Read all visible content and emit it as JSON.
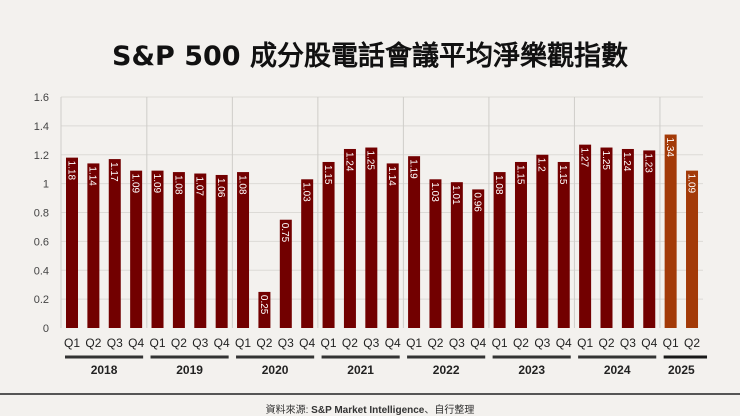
{
  "chart_data": {
    "type": "bar",
    "title": "S&P 500 成分股電話會議平均淨樂觀指數",
    "xlabel": "",
    "ylabel": "",
    "ylim": [
      0,
      1.6
    ],
    "yticks": [
      "0",
      "0.2",
      "0.4",
      "0.6",
      "0.8",
      "1",
      "1.2",
      "1.4",
      "1.6"
    ],
    "grid": true,
    "groups": [
      {
        "year": "2018",
        "quarters": [
          "Q1",
          "Q2",
          "Q3",
          "Q4"
        ],
        "values": [
          1.18,
          1.14,
          1.17,
          1.09
        ]
      },
      {
        "year": "2019",
        "quarters": [
          "Q1",
          "Q2",
          "Q3",
          "Q4"
        ],
        "values": [
          1.09,
          1.08,
          1.07,
          1.06
        ]
      },
      {
        "year": "2020",
        "quarters": [
          "Q1",
          "Q2",
          "Q3",
          "Q4"
        ],
        "values": [
          1.08,
          0.25,
          0.75,
          1.03
        ]
      },
      {
        "year": "2021",
        "quarters": [
          "Q1",
          "Q2",
          "Q3",
          "Q4"
        ],
        "values": [
          1.15,
          1.24,
          1.25,
          1.14
        ]
      },
      {
        "year": "2022",
        "quarters": [
          "Q1",
          "Q2",
          "Q3",
          "Q4"
        ],
        "values": [
          1.19,
          1.03,
          1.01,
          0.96
        ]
      },
      {
        "year": "2023",
        "quarters": [
          "Q1",
          "Q2",
          "Q3",
          "Q4"
        ],
        "values": [
          1.08,
          1.15,
          1.2,
          1.15
        ]
      },
      {
        "year": "2024",
        "quarters": [
          "Q1",
          "Q2",
          "Q3",
          "Q4"
        ],
        "values": [
          1.27,
          1.25,
          1.24,
          1.23
        ]
      },
      {
        "year": "2025",
        "quarters": [
          "Q1",
          "Q2"
        ],
        "values": [
          1.34,
          1.09
        ]
      }
    ],
    "data_labels": [
      [
        "1.18",
        "1.14",
        "1.17",
        "1.09"
      ],
      [
        "1.09",
        "1.08",
        "1.07",
        "1.06"
      ],
      [
        "1.08",
        "0.25",
        "0.75",
        "1.03"
      ],
      [
        "1.15",
        "1.24",
        "1.25",
        "1.14"
      ],
      [
        "1.19",
        "1.03",
        "1.01",
        "0.96"
      ],
      [
        "1.08",
        "1.15",
        "1.2",
        "1.15"
      ],
      [
        "1.27",
        "1.25",
        "1.24",
        "1.23"
      ],
      [
        "1.34",
        "1.09"
      ]
    ],
    "colors": {
      "bar": "#720000",
      "highlight_bar": "#a33a08",
      "grid": "#dcdad6",
      "background": "#f3f1ee"
    },
    "highlight_year": "2025"
  },
  "source": {
    "prefix": "資料來源: ",
    "bold": "S&P Market Intelligence",
    "suffix": "、自行整理"
  }
}
